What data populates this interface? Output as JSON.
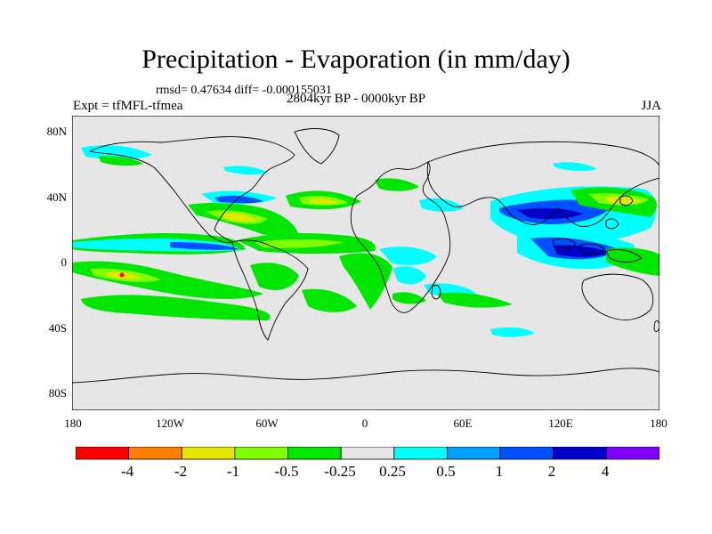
{
  "title": "Precipitation - Evaporation (in mm/day)",
  "subtitle": "rmsd= 0.47634 diff= -0.000155031",
  "experiment": "Expt = tfMFL-tfmea",
  "period": "2804kyr BP - 0000kyr BP",
  "season": "JJA",
  "lat_labels": [
    "80N",
    "40N",
    "0",
    "40S",
    "80S"
  ],
  "lon_labels": [
    "180",
    "120W",
    "60W",
    "0",
    "60E",
    "120E",
    "180"
  ],
  "colorbar": {
    "colors": [
      "#ff0000",
      "#ff8000",
      "#e6e600",
      "#80ff00",
      "#00e600",
      "#e6e6e6",
      "#00ffff",
      "#00a0ff",
      "#0050ff",
      "#0000c8",
      "#8000ff"
    ],
    "labels": [
      "-4",
      "-2",
      "-1",
      "-0.5",
      "-0.25",
      "0.25",
      "0.5",
      "1",
      "2",
      "4"
    ]
  },
  "map": {
    "background": "#e6e6e6",
    "coastline_color": "#000000"
  }
}
